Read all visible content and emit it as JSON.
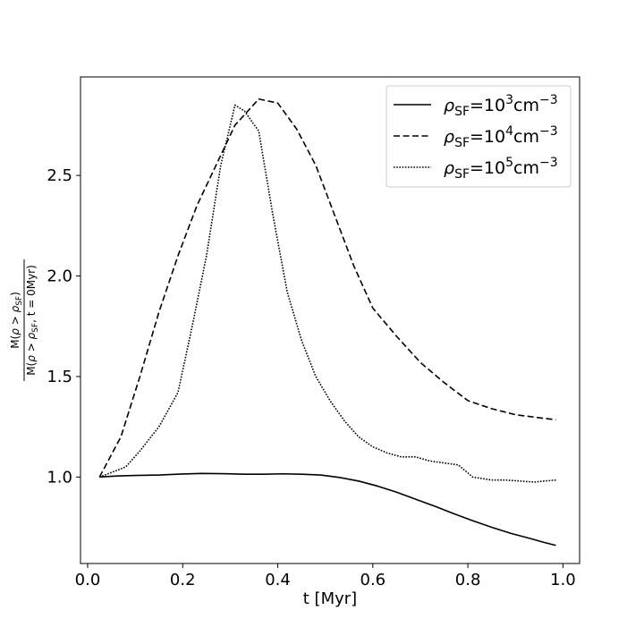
{
  "chart_data": {
    "type": "line",
    "xlabel": "t [Myr]",
    "ylabel": {
      "numerator": "M(ρ > ρSF)",
      "denominator": "M(ρ > ρSF, t = 0Myr)"
    },
    "xlim": [
      -0.015,
      1.035
    ],
    "ylim": [
      0.57,
      2.99
    ],
    "xticks": [
      "0.0",
      "0.2",
      "0.4",
      "0.6",
      "0.8",
      "1.0"
    ],
    "xtick_values": [
      0.0,
      0.2,
      0.4,
      0.6,
      0.8,
      1.0
    ],
    "yticks": [
      "1.0",
      "1.5",
      "2.0",
      "2.5"
    ],
    "ytick_values": [
      1.0,
      1.5,
      2.0,
      2.5
    ],
    "grid": false,
    "legend_position": "top-right",
    "series": [
      {
        "name": "ρSF=10^3cm^-3",
        "legend": {
          "base": "ρ",
          "sub": "SF",
          "eq": "=10",
          "exp": "3",
          "unit": "cm",
          "unit_exp": "−3"
        },
        "style": "solid",
        "x": [
          0.025,
          0.06,
          0.1,
          0.15,
          0.2,
          0.24,
          0.28,
          0.33,
          0.37,
          0.41,
          0.45,
          0.49,
          0.53,
          0.57,
          0.61,
          0.65,
          0.69,
          0.73,
          0.77,
          0.81,
          0.85,
          0.89,
          0.93,
          0.96,
          0.985
        ],
        "y": [
          1.0,
          1.005,
          1.008,
          1.01,
          1.015,
          1.018,
          1.017,
          1.014,
          1.014,
          1.016,
          1.014,
          1.01,
          0.998,
          0.98,
          0.955,
          0.925,
          0.89,
          0.855,
          0.818,
          0.783,
          0.75,
          0.72,
          0.695,
          0.675,
          0.66
        ]
      },
      {
        "name": "ρSF=10^4cm^-3",
        "legend": {
          "base": "ρ",
          "sub": "SF",
          "eq": "=10",
          "exp": "4",
          "unit": "cm",
          "unit_exp": "−3"
        },
        "style": "dashed",
        "x": [
          0.025,
          0.07,
          0.11,
          0.15,
          0.19,
          0.23,
          0.27,
          0.31,
          0.36,
          0.4,
          0.44,
          0.48,
          0.52,
          0.56,
          0.6,
          0.65,
          0.7,
          0.75,
          0.8,
          0.85,
          0.9,
          0.95,
          0.985
        ],
        "y": [
          1.0,
          1.2,
          1.5,
          1.82,
          2.1,
          2.35,
          2.55,
          2.75,
          2.88,
          2.86,
          2.73,
          2.55,
          2.3,
          2.05,
          1.84,
          1.7,
          1.57,
          1.47,
          1.38,
          1.34,
          1.31,
          1.295,
          1.285
        ]
      },
      {
        "name": "ρSF=10^5cm^-3",
        "legend": {
          "base": "ρ",
          "sub": "SF",
          "eq": "=10",
          "exp": "5",
          "unit": "cm",
          "unit_exp": "−3"
        },
        "style": "dotted",
        "x": [
          0.025,
          0.08,
          0.11,
          0.15,
          0.19,
          0.22,
          0.25,
          0.28,
          0.31,
          0.33,
          0.36,
          0.39,
          0.42,
          0.45,
          0.48,
          0.51,
          0.54,
          0.57,
          0.6,
          0.63,
          0.66,
          0.69,
          0.72,
          0.75,
          0.78,
          0.81,
          0.85,
          0.88,
          0.91,
          0.94,
          0.96,
          0.985
        ],
        "y": [
          1.0,
          1.05,
          1.13,
          1.25,
          1.42,
          1.75,
          2.1,
          2.55,
          2.85,
          2.82,
          2.72,
          2.3,
          1.92,
          1.68,
          1.5,
          1.38,
          1.28,
          1.2,
          1.15,
          1.12,
          1.1,
          1.1,
          1.08,
          1.07,
          1.06,
          1.0,
          0.985,
          0.985,
          0.98,
          0.975,
          0.98,
          0.985
        ]
      }
    ]
  }
}
